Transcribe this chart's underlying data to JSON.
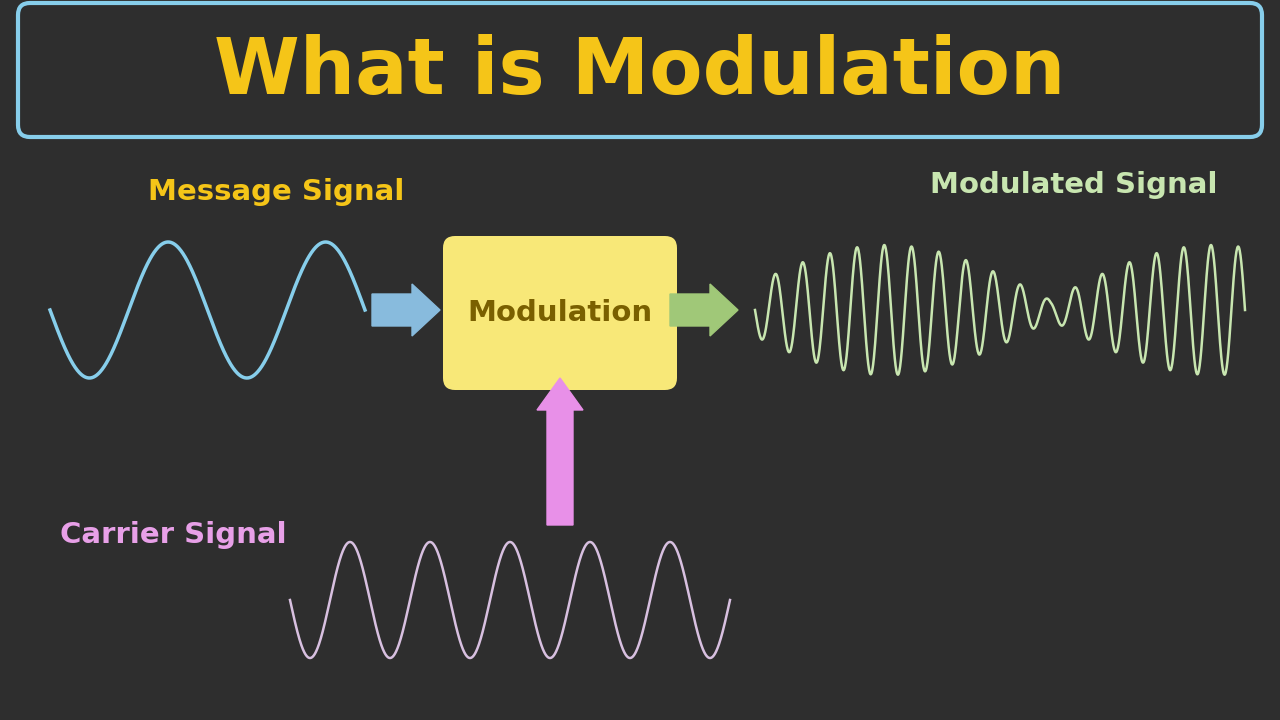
{
  "bg_color": "#2e2e2e",
  "title_text": "What is Modulation",
  "title_color": "#f5c518",
  "title_box_edge_color": "#87ceeb",
  "msg_label": "Message Signal",
  "msg_label_color": "#f5c518",
  "msg_wave_color": "#87ceeb",
  "carrier_label": "Carrier Signal",
  "carrier_label_color": "#e8a0e8",
  "carrier_wave_color": "#d8c0e0",
  "mod_label": "Modulated Signal",
  "mod_label_color": "#c8e6b0",
  "mod_wave_color": "#c8e6b0",
  "box_bg_color": "#f8e878",
  "box_text": "Modulation",
  "box_text_color": "#7a6000",
  "arrow_left_color": "#88bbdd",
  "arrow_right_color": "#a0c878",
  "arrow_up_color": "#e890e8"
}
